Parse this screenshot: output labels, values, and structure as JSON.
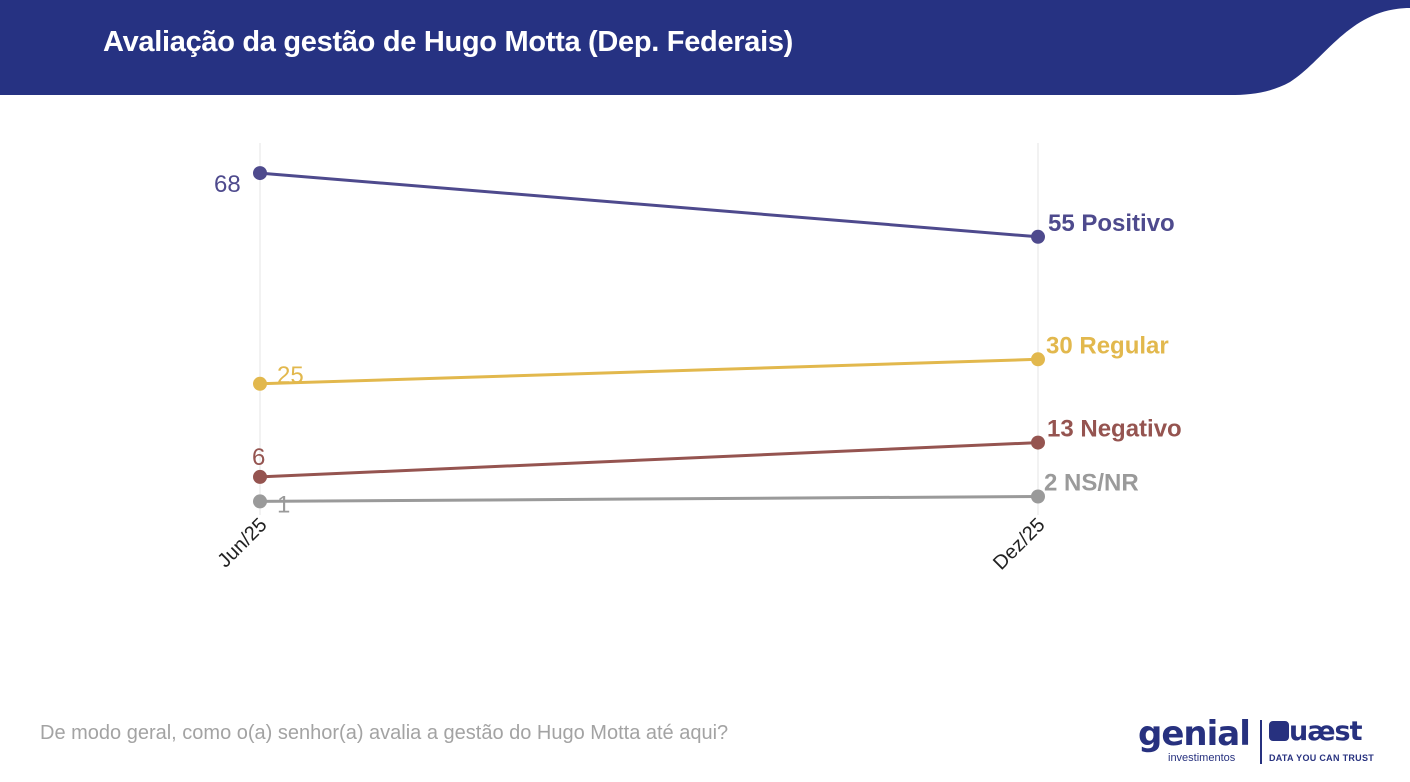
{
  "header": {
    "title": "Avaliação da gestão de Hugo Motta (Dep. Federais)",
    "band_color": "#263282"
  },
  "footer": {
    "question": "De modo geral, como o(a) senhor(a) avalia a gestão do Hugo Motta até aqui?"
  },
  "logos": {
    "genial": {
      "name": "genial",
      "tagline": "investimentos"
    },
    "quaest": {
      "name": "uæst",
      "tagline": "DATA YOU CAN TRUST"
    }
  },
  "chart_data": {
    "type": "line",
    "title": "",
    "xlabel": "",
    "ylabel": "",
    "categories": [
      "Jun/25",
      "Dez/25"
    ],
    "ylim": [
      0,
      70
    ],
    "grid": "vertical",
    "legend": "none",
    "series": [
      {
        "name": "Positivo",
        "values": [
          68,
          55
        ],
        "color": "#4e4a8d",
        "start_label": "68",
        "end_label": "55 Positivo"
      },
      {
        "name": "Regular",
        "values": [
          25,
          30
        ],
        "color": "#e2b84d",
        "start_label": "25",
        "end_label": "30 Regular"
      },
      {
        "name": "Negativo",
        "values": [
          6,
          13
        ],
        "color": "#955450",
        "start_label": "6",
        "end_label": "13 Negativo"
      },
      {
        "name": "NS/NR",
        "values": [
          1,
          2
        ],
        "color": "#9a9a9a",
        "start_label": "1",
        "end_label": "2 NS/NR"
      }
    ]
  }
}
